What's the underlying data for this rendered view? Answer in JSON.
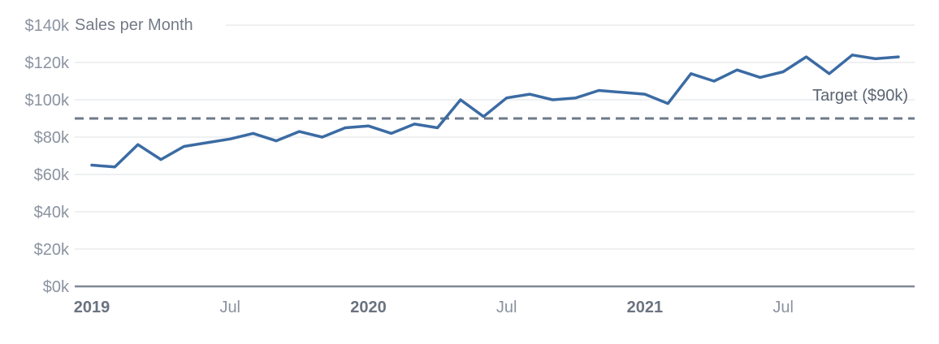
{
  "chart_data": {
    "type": "line",
    "title": "Sales per Month",
    "target": {
      "value": 90,
      "label": "Target ($90k)"
    },
    "ylim": [
      0,
      140
    ],
    "grid": true,
    "legend": "none",
    "x": [
      "Jan 2019",
      "Feb 2019",
      "Mar 2019",
      "Apr 2019",
      "May 2019",
      "Jun 2019",
      "Jul 2019",
      "Aug 2019",
      "Sep 2019",
      "Oct 2019",
      "Nov 2019",
      "Dec 2019",
      "Jan 2020",
      "Feb 2020",
      "Mar 2020",
      "Apr 2020",
      "May 2020",
      "Jun 2020",
      "Jul 2020",
      "Aug 2020",
      "Sep 2020",
      "Oct 2020",
      "Nov 2020",
      "Dec 2020",
      "Jan 2021",
      "Feb 2021",
      "Mar 2021",
      "Apr 2021",
      "May 2021",
      "Jun 2021",
      "Jul 2021",
      "Aug 2021",
      "Sep 2021",
      "Oct 2021",
      "Nov 2021",
      "Dec 2021"
    ],
    "series": [
      {
        "name": "Sales per Month ($k)",
        "values": [
          65,
          64,
          76,
          68,
          75,
          77,
          79,
          82,
          78,
          83,
          80,
          85,
          86,
          82,
          87,
          85,
          100,
          91,
          101,
          103,
          100,
          101,
          105,
          104,
          103,
          98,
          114,
          110,
          116,
          112,
          115,
          123,
          114,
          124,
          122,
          123
        ]
      }
    ],
    "x_ticks": [
      {
        "index": 0,
        "label": "2019",
        "emphasis": true
      },
      {
        "index": 6,
        "label": "Jul",
        "emphasis": false
      },
      {
        "index": 12,
        "label": "2020",
        "emphasis": true
      },
      {
        "index": 18,
        "label": "Jul",
        "emphasis": false
      },
      {
        "index": 24,
        "label": "2021",
        "emphasis": true
      },
      {
        "index": 30,
        "label": "Jul",
        "emphasis": false
      }
    ],
    "y_ticks": [
      {
        "value": 0,
        "label": "$0k"
      },
      {
        "value": 20,
        "label": "$20k"
      },
      {
        "value": 40,
        "label": "$40k"
      },
      {
        "value": 60,
        "label": "$60k"
      },
      {
        "value": 80,
        "label": "$80k"
      },
      {
        "value": 100,
        "label": "$100k"
      },
      {
        "value": 120,
        "label": "$120k"
      },
      {
        "value": 140,
        "label": "$140k"
      }
    ],
    "colors": {
      "background": "#ffffff",
      "series": "#3b6ba3",
      "target_line": "#6e7a89",
      "grid": "#e9ebee",
      "axis": "#7e8795",
      "tick_label": "#8b93a0",
      "year_label": "#6b7380",
      "title": "#747b87",
      "target_label": "#5b6472"
    }
  }
}
